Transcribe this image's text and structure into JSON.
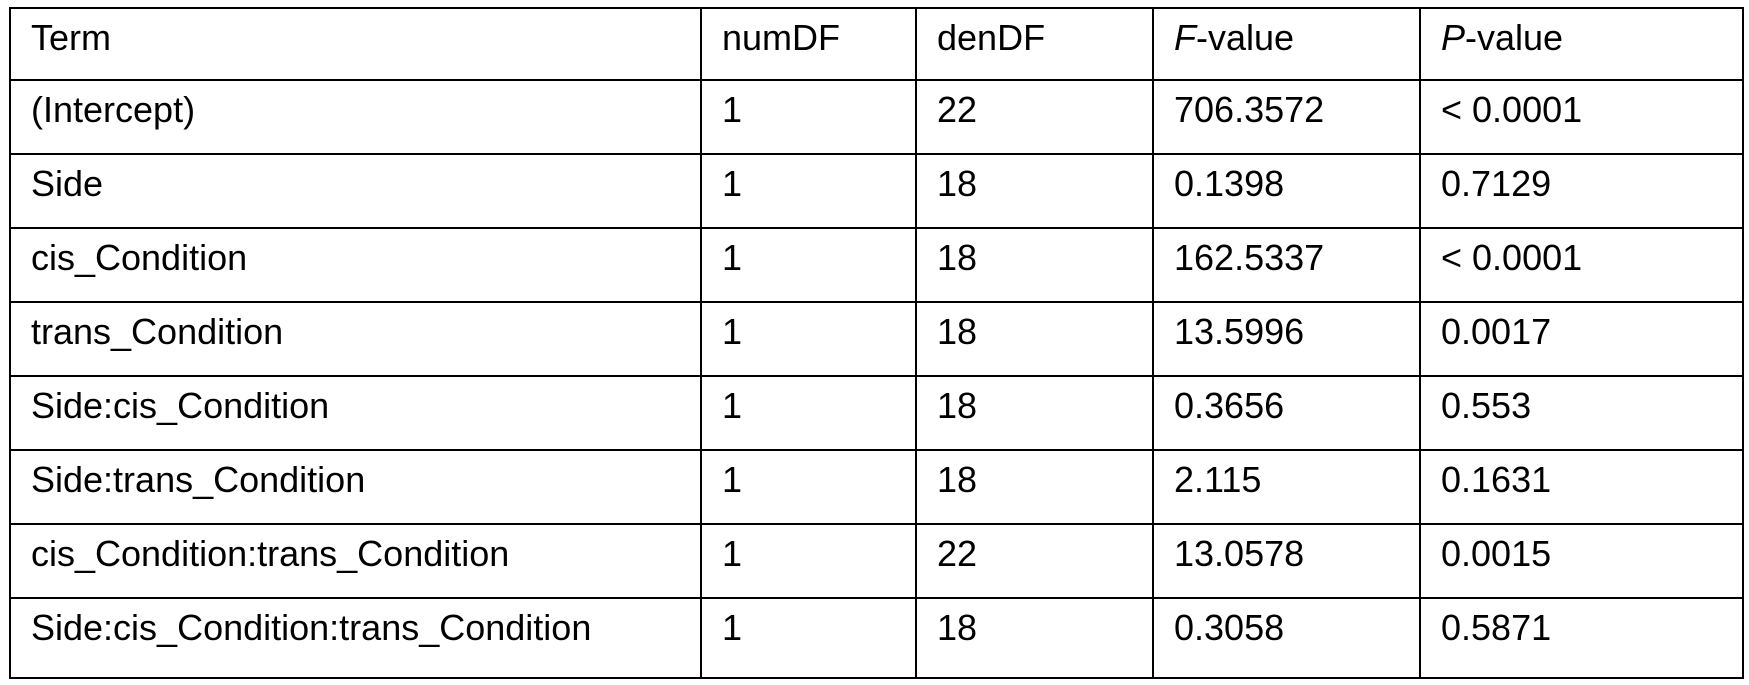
{
  "table": {
    "header": [
      "Term",
      "numDF",
      "denDF",
      [
        "F",
        "-value"
      ],
      [
        "P",
        "-value"
      ]
    ],
    "rows": [
      [
        "(Intercept)",
        "1",
        "22",
        "706.3572",
        "< 0.0001"
      ],
      [
        "Side",
        "1",
        "18",
        "0.1398",
        "0.7129"
      ],
      [
        "cis_Condition",
        "1",
        "18",
        "162.5337",
        "< 0.0001"
      ],
      [
        "trans_Condition",
        "1",
        "18",
        "13.5996",
        "0.0017"
      ],
      [
        "Side:cis_Condition",
        "1",
        "18",
        "0.3656",
        "0.553"
      ],
      [
        "Side:trans_Condition",
        "1",
        "18",
        "2.115",
        "0.1631"
      ],
      [
        "cis_Condition:trans_Condition",
        "1",
        "22",
        "13.0578",
        "0.0015"
      ],
      [
        "Side:cis_Condition:trans_Condition",
        "1",
        "18",
        "0.3058",
        "0.5871"
      ]
    ]
  }
}
